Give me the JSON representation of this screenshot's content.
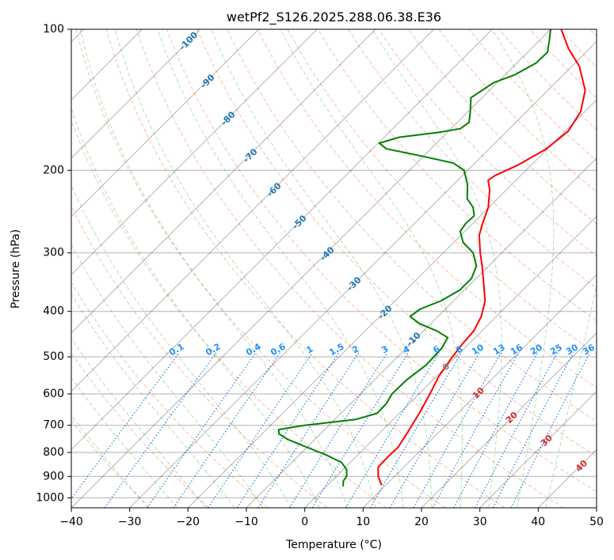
{
  "chart_data": {
    "type": "line",
    "subtype": "skew-t log-p diagram",
    "title": "wetPf2_S126.2025.288.06.38.E36",
    "xlabel": "Temperature (°C)",
    "ylabel": "Pressure (hPa)",
    "xlim": [
      -40,
      50
    ],
    "ylim": [
      1050,
      100
    ],
    "x_ticks": [
      -40,
      -30,
      -20,
      -10,
      0,
      10,
      20,
      30,
      40,
      50
    ],
    "x_tick_labels": [
      "−40",
      "−30",
      "−20",
      "−10",
      "0",
      "10",
      "20",
      "30",
      "40",
      "50"
    ],
    "y_ticks": [
      100,
      200,
      300,
      400,
      500,
      600,
      700,
      800,
      900,
      1000
    ],
    "y_tick_labels": [
      "100",
      "200",
      "300",
      "400",
      "500",
      "600",
      "700",
      "800",
      "900",
      "1000"
    ],
    "grid": true,
    "isotherm_labels": [
      {
        "t": -100,
        "text": "-100"
      },
      {
        "t": -90,
        "text": "-90"
      },
      {
        "t": -80,
        "text": "-80"
      },
      {
        "t": -70,
        "text": "-70"
      },
      {
        "t": -60,
        "text": "-60"
      },
      {
        "t": -50,
        "text": "-50"
      },
      {
        "t": -40,
        "text": "-40"
      },
      {
        "t": -30,
        "text": "-30"
      },
      {
        "t": -20,
        "text": "-20"
      },
      {
        "t": -10,
        "text": "-10"
      },
      {
        "t": 0,
        "text": "0"
      },
      {
        "t": 10,
        "text": "10"
      },
      {
        "t": 20,
        "text": "20"
      },
      {
        "t": 30,
        "text": "30"
      },
      {
        "t": 40,
        "text": "40"
      }
    ],
    "mixing_ratio_labels": [
      "0.1",
      "0.2",
      "0.4",
      "0.6",
      "1",
      "1.5",
      "2",
      "3",
      "4",
      "6",
      "8",
      "10",
      "13",
      "16",
      "20",
      "25",
      "30",
      "36"
    ],
    "series": [
      {
        "name": "Temperature",
        "color": "#ff0000",
        "points": [
          {
            "p": 940,
            "t": 9.3
          },
          {
            "p": 900,
            "t": 7.2
          },
          {
            "p": 860,
            "t": 5.6
          },
          {
            "p": 820,
            "t": 5.5
          },
          {
            "p": 780,
            "t": 5.6
          },
          {
            "p": 720,
            "t": 4.6
          },
          {
            "p": 660,
            "t": 3.4
          },
          {
            "p": 600,
            "t": 1.9
          },
          {
            "p": 550,
            "t": 0.4
          },
          {
            "p": 500,
            "t": -0.6
          },
          {
            "p": 470,
            "t": -1.1
          },
          {
            "p": 440,
            "t": -1.4
          },
          {
            "p": 410,
            "t": -2.6
          },
          {
            "p": 380,
            "t": -4.6
          },
          {
            "p": 350,
            "t": -7.7
          },
          {
            "p": 320,
            "t": -11.1
          },
          {
            "p": 300,
            "t": -13.7
          },
          {
            "p": 275,
            "t": -16.9
          },
          {
            "p": 260,
            "t": -18.3
          },
          {
            "p": 240,
            "t": -20.1
          },
          {
            "p": 220,
            "t": -22.9
          },
          {
            "p": 210,
            "t": -24.8
          },
          {
            "p": 205,
            "t": -24.4
          },
          {
            "p": 195,
            "t": -22.3
          },
          {
            "p": 180,
            "t": -20.2
          },
          {
            "p": 165,
            "t": -19.5
          },
          {
            "p": 150,
            "t": -20.7
          },
          {
            "p": 135,
            "t": -23.6
          },
          {
            "p": 120,
            "t": -28.7
          },
          {
            "p": 110,
            "t": -33.6
          },
          {
            "p": 100,
            "t": -38.2
          }
        ]
      },
      {
        "name": "Dewpoint",
        "color": "#008000",
        "points": [
          {
            "p": 945,
            "t": 2.9
          },
          {
            "p": 920,
            "t": 2.0
          },
          {
            "p": 900,
            "t": 1.8
          },
          {
            "p": 870,
            "t": 0.6
          },
          {
            "p": 840,
            "t": -1.5
          },
          {
            "p": 810,
            "t": -5.4
          },
          {
            "p": 780,
            "t": -10.0
          },
          {
            "p": 750,
            "t": -14.7
          },
          {
            "p": 730,
            "t": -17.1
          },
          {
            "p": 715,
            "t": -17.9
          },
          {
            "p": 700,
            "t": -14.2
          },
          {
            "p": 680,
            "t": -6.4
          },
          {
            "p": 660,
            "t": -3.8
          },
          {
            "p": 630,
            "t": -3.9
          },
          {
            "p": 600,
            "t": -4.6
          },
          {
            "p": 560,
            "t": -4.5
          },
          {
            "p": 520,
            "t": -3.7
          },
          {
            "p": 480,
            "t": -3.9
          },
          {
            "p": 455,
            "t": -4.7
          },
          {
            "p": 440,
            "t": -7.8
          },
          {
            "p": 425,
            "t": -11.9
          },
          {
            "p": 410,
            "t": -14.8
          },
          {
            "p": 395,
            "t": -14.3
          },
          {
            "p": 380,
            "t": -12.2
          },
          {
            "p": 360,
            "t": -10.8
          },
          {
            "p": 340,
            "t": -10.8
          },
          {
            "p": 320,
            "t": -12.1
          },
          {
            "p": 300,
            "t": -14.9
          },
          {
            "p": 285,
            "t": -18.4
          },
          {
            "p": 270,
            "t": -20.8
          },
          {
            "p": 260,
            "t": -21.2
          },
          {
            "p": 250,
            "t": -21.1
          },
          {
            "p": 240,
            "t": -22.7
          },
          {
            "p": 230,
            "t": -25.2
          },
          {
            "p": 215,
            "t": -27.5
          },
          {
            "p": 200,
            "t": -30.6
          },
          {
            "p": 193,
            "t": -33.7
          },
          {
            "p": 186,
            "t": -40.8
          },
          {
            "p": 180,
            "t": -47.6
          },
          {
            "p": 175,
            "t": -49.8
          },
          {
            "p": 170,
            "t": -47.4
          },
          {
            "p": 166,
            "t": -41.5
          },
          {
            "p": 163,
            "t": -38.4
          },
          {
            "p": 158,
            "t": -38.0
          },
          {
            "p": 150,
            "t": -39.6
          },
          {
            "p": 140,
            "t": -41.9
          },
          {
            "p": 130,
            "t": -40.6
          },
          {
            "p": 125,
            "t": -38.3
          },
          {
            "p": 118,
            "t": -36.7
          },
          {
            "p": 112,
            "t": -36.6
          },
          {
            "p": 106,
            "t": -38.2
          },
          {
            "p": 100,
            "t": -40.0
          }
        ]
      }
    ]
  }
}
